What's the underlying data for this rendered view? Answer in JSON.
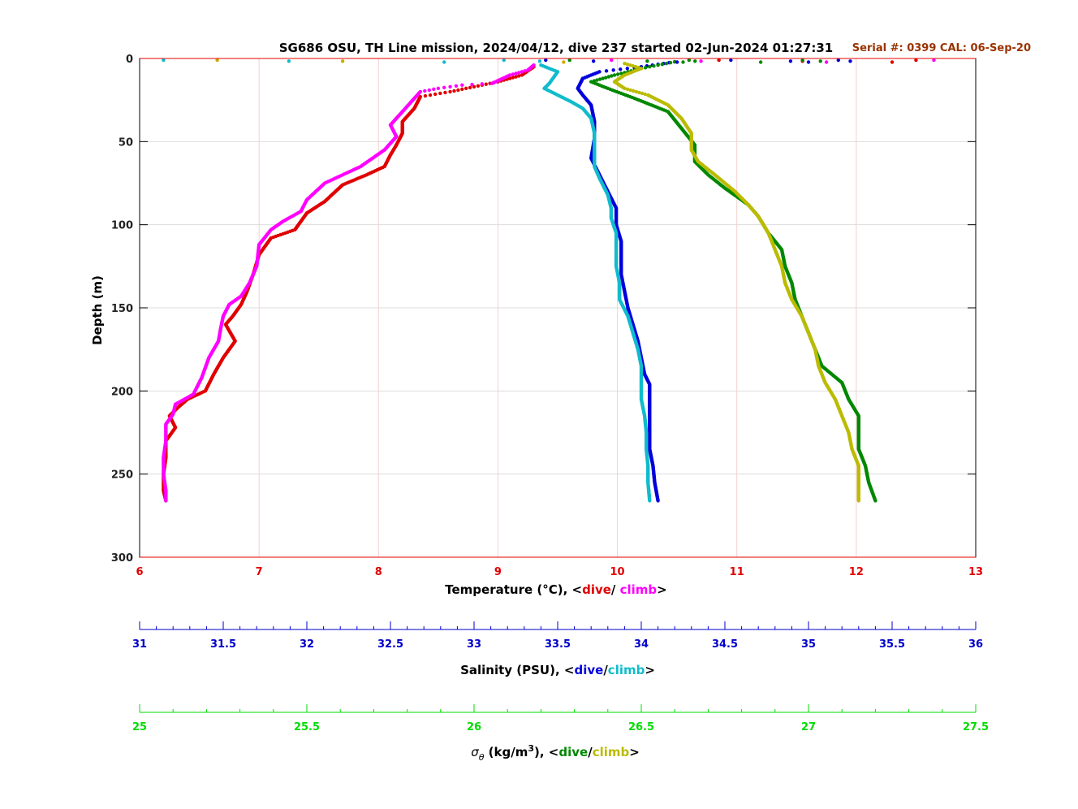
{
  "chart_data": {
    "type": "scatter",
    "title": "SG686 OSU, TH Line mission, 2024/04/12, dive 237 started 02-Jun-2024 01:27:31",
    "serial_note": "Serial #: 0399  CAL: 06-Sep-20",
    "y_axis": {
      "label": "Depth (m)",
      "range": [
        0,
        300
      ],
      "reversed": true,
      "ticks": [
        0,
        50,
        100,
        150,
        200,
        250,
        300
      ]
    },
    "grid": true,
    "axes": [
      {
        "id": "temperature",
        "label_prefix": "Temperature (°C), <",
        "label_dive": "dive",
        "label_sep": "/ ",
        "label_climb": "climb",
        "label_suffix": ">",
        "range": [
          6,
          13
        ],
        "ticks": [
          6,
          7,
          8,
          9,
          10,
          11,
          12,
          13
        ],
        "color": "#e00000",
        "label_color": "#000000"
      },
      {
        "id": "salinity",
        "label_prefix": "Salinity (PSU), <",
        "label_dive": "dive",
        "label_sep": "/",
        "label_climb": "climb",
        "label_suffix": ">",
        "range": [
          31,
          36
        ],
        "ticks": [
          31,
          31.5,
          32,
          32.5,
          33,
          33.5,
          34,
          34.5,
          35,
          35.5,
          36
        ],
        "color": "#0000cc"
      },
      {
        "id": "density",
        "label_sigma": "σ",
        "label_theta": "θ",
        "label_units": " (kg/m",
        "label_sup": "3",
        "label_prefix": "), <",
        "label_dive": "dive",
        "label_sep": "/",
        "label_climb": "climb",
        "label_suffix": ">",
        "range": [
          25,
          27.5
        ],
        "ticks": [
          25,
          25.5,
          26,
          26.5,
          27,
          27.5
        ],
        "color": "#00dd00"
      }
    ],
    "series": [
      {
        "name": "dive",
        "axis": "temperature",
        "color": "#e00000",
        "points": [
          [
            9.3,
            5
          ],
          [
            9.2,
            10
          ],
          [
            9.0,
            14
          ],
          [
            8.6,
            20
          ],
          [
            8.35,
            23
          ],
          [
            8.3,
            30
          ],
          [
            8.2,
            38
          ],
          [
            8.2,
            45
          ],
          [
            8.15,
            52
          ],
          [
            8.1,
            58
          ],
          [
            8.05,
            65
          ],
          [
            7.9,
            70
          ],
          [
            7.7,
            76
          ],
          [
            7.55,
            86
          ],
          [
            7.4,
            93
          ],
          [
            7.35,
            98
          ],
          [
            7.3,
            103
          ],
          [
            7.1,
            108
          ],
          [
            7.0,
            118
          ],
          [
            6.95,
            130
          ],
          [
            6.9,
            140
          ],
          [
            6.85,
            148
          ],
          [
            6.78,
            155
          ],
          [
            6.72,
            160
          ],
          [
            6.8,
            170
          ],
          [
            6.7,
            180
          ],
          [
            6.62,
            190
          ],
          [
            6.55,
            200
          ],
          [
            6.4,
            205
          ],
          [
            6.32,
            210
          ],
          [
            6.25,
            215
          ],
          [
            6.3,
            222
          ],
          [
            6.22,
            230
          ],
          [
            6.22,
            240
          ],
          [
            6.2,
            250
          ],
          [
            6.2,
            260
          ],
          [
            6.22,
            266
          ]
        ]
      },
      {
        "name": "climb",
        "axis": "temperature",
        "color": "#ff00ff",
        "points": [
          [
            9.3,
            4
          ],
          [
            9.25,
            7
          ],
          [
            9.1,
            10
          ],
          [
            8.95,
            15
          ],
          [
            8.7,
            16
          ],
          [
            8.5,
            18
          ],
          [
            8.35,
            20
          ],
          [
            8.25,
            28
          ],
          [
            8.1,
            40
          ],
          [
            8.15,
            47
          ],
          [
            8.05,
            55
          ],
          [
            7.85,
            65
          ],
          [
            7.55,
            75
          ],
          [
            7.4,
            85
          ],
          [
            7.35,
            92
          ],
          [
            7.2,
            98
          ],
          [
            7.1,
            103
          ],
          [
            7.0,
            112
          ],
          [
            6.98,
            125
          ],
          [
            6.92,
            135
          ],
          [
            6.85,
            143
          ],
          [
            6.75,
            148
          ],
          [
            6.7,
            155
          ],
          [
            6.68,
            162
          ],
          [
            6.66,
            170
          ],
          [
            6.58,
            180
          ],
          [
            6.52,
            192
          ],
          [
            6.45,
            202
          ],
          [
            6.3,
            208
          ],
          [
            6.28,
            214
          ],
          [
            6.22,
            220
          ],
          [
            6.22,
            230
          ],
          [
            6.2,
            240
          ],
          [
            6.2,
            250
          ],
          [
            6.22,
            260
          ],
          [
            6.22,
            266
          ]
        ]
      },
      {
        "name": "dive",
        "axis": "salinity",
        "color": "#0000dd",
        "points": [
          [
            34.2,
            2
          ],
          [
            34.0,
            5
          ],
          [
            33.75,
            8
          ],
          [
            33.65,
            12
          ],
          [
            33.62,
            18
          ],
          [
            33.65,
            22
          ],
          [
            33.7,
            28
          ],
          [
            33.72,
            38
          ],
          [
            33.72,
            48
          ],
          [
            33.7,
            60
          ],
          [
            33.75,
            70
          ],
          [
            33.8,
            80
          ],
          [
            33.85,
            90
          ],
          [
            33.85,
            100
          ],
          [
            33.88,
            110
          ],
          [
            33.88,
            120
          ],
          [
            33.88,
            130
          ],
          [
            33.9,
            140
          ],
          [
            33.92,
            150
          ],
          [
            33.95,
            160
          ],
          [
            33.98,
            170
          ],
          [
            34.0,
            180
          ],
          [
            34.02,
            190
          ],
          [
            34.05,
            196
          ],
          [
            34.05,
            205
          ],
          [
            34.05,
            215
          ],
          [
            34.05,
            225
          ],
          [
            34.05,
            235
          ],
          [
            34.07,
            245
          ],
          [
            34.08,
            255
          ],
          [
            34.1,
            266
          ]
        ]
      },
      {
        "name": "climb",
        "axis": "salinity",
        "color": "#11bbcc",
        "points": [
          [
            33.4,
            4
          ],
          [
            33.5,
            8
          ],
          [
            33.45,
            15
          ],
          [
            33.42,
            18
          ],
          [
            33.5,
            22
          ],
          [
            33.58,
            26
          ],
          [
            33.65,
            30
          ],
          [
            33.7,
            36
          ],
          [
            33.72,
            45
          ],
          [
            33.72,
            55
          ],
          [
            33.72,
            65
          ],
          [
            33.75,
            72
          ],
          [
            33.8,
            82
          ],
          [
            33.82,
            90
          ],
          [
            33.82,
            96
          ],
          [
            33.85,
            105
          ],
          [
            33.85,
            115
          ],
          [
            33.85,
            125
          ],
          [
            33.87,
            135
          ],
          [
            33.87,
            145
          ],
          [
            33.92,
            155
          ],
          [
            33.95,
            165
          ],
          [
            33.98,
            175
          ],
          [
            34.0,
            185
          ],
          [
            34.0,
            195
          ],
          [
            34.0,
            205
          ],
          [
            34.02,
            215
          ],
          [
            34.03,
            225
          ],
          [
            34.03,
            235
          ],
          [
            34.04,
            245
          ],
          [
            34.04,
            255
          ],
          [
            34.05,
            266
          ]
        ]
      },
      {
        "name": "dive",
        "axis": "density",
        "color": "#008800",
        "points": [
          [
            26.6,
            2
          ],
          [
            26.5,
            6
          ],
          [
            26.42,
            10
          ],
          [
            26.35,
            14
          ],
          [
            26.4,
            18
          ],
          [
            26.48,
            24
          ],
          [
            26.58,
            32
          ],
          [
            26.62,
            42
          ],
          [
            26.66,
            52
          ],
          [
            26.66,
            62
          ],
          [
            26.7,
            70
          ],
          [
            26.75,
            78
          ],
          [
            26.82,
            88
          ],
          [
            26.85,
            95
          ],
          [
            26.88,
            105
          ],
          [
            26.92,
            115
          ],
          [
            26.93,
            125
          ],
          [
            26.95,
            135
          ],
          [
            26.96,
            145
          ],
          [
            26.98,
            155
          ],
          [
            27.0,
            165
          ],
          [
            27.02,
            175
          ],
          [
            27.04,
            185
          ],
          [
            27.1,
            195
          ],
          [
            27.12,
            205
          ],
          [
            27.15,
            215
          ],
          [
            27.15,
            225
          ],
          [
            27.15,
            235
          ],
          [
            27.17,
            245
          ],
          [
            27.18,
            255
          ],
          [
            27.2,
            266
          ]
        ]
      },
      {
        "name": "climb",
        "axis": "density",
        "color": "#bbbb00",
        "points": [
          [
            26.45,
            3
          ],
          [
            26.5,
            6
          ],
          [
            26.45,
            10
          ],
          [
            26.42,
            14
          ],
          [
            26.45,
            18
          ],
          [
            26.52,
            22
          ],
          [
            26.58,
            28
          ],
          [
            26.62,
            36
          ],
          [
            26.65,
            45
          ],
          [
            26.65,
            55
          ],
          [
            26.67,
            62
          ],
          [
            26.72,
            70
          ],
          [
            26.78,
            80
          ],
          [
            26.82,
            88
          ],
          [
            26.85,
            95
          ],
          [
            26.88,
            105
          ],
          [
            26.9,
            115
          ],
          [
            26.92,
            125
          ],
          [
            26.93,
            135
          ],
          [
            26.95,
            145
          ],
          [
            26.98,
            155
          ],
          [
            27.0,
            165
          ],
          [
            27.02,
            175
          ],
          [
            27.03,
            185
          ],
          [
            27.05,
            195
          ],
          [
            27.08,
            205
          ],
          [
            27.1,
            215
          ],
          [
            27.12,
            225
          ],
          [
            27.13,
            235
          ],
          [
            27.15,
            245
          ],
          [
            27.15,
            255
          ],
          [
            27.15,
            266
          ]
        ]
      }
    ],
    "surface_dots": [
      {
        "axis": "temperature",
        "color": "#11bbcc",
        "values": [
          6.2,
          7.25,
          8.55,
          9.05,
          9.35
        ]
      },
      {
        "axis": "temperature",
        "color": "#ccaa00",
        "values": [
          6.65,
          7.7,
          9.55
        ]
      },
      {
        "axis": "temperature",
        "color": "#ff00ff",
        "values": [
          9.95,
          10.7,
          11.75,
          12.65
        ]
      },
      {
        "axis": "temperature",
        "color": "#e00000",
        "values": [
          10.85,
          11.55,
          12.3,
          12.5
        ]
      },
      {
        "axis": "temperature",
        "color": "#0000dd",
        "values": [
          9.4,
          9.8,
          10.5,
          10.95,
          11.45,
          11.6,
          11.85,
          11.95
        ]
      },
      {
        "axis": "temperature",
        "color": "#008800",
        "values": [
          9.6,
          10.25,
          10.55,
          10.6,
          10.65,
          11.2,
          11.55,
          11.7
        ]
      }
    ]
  }
}
